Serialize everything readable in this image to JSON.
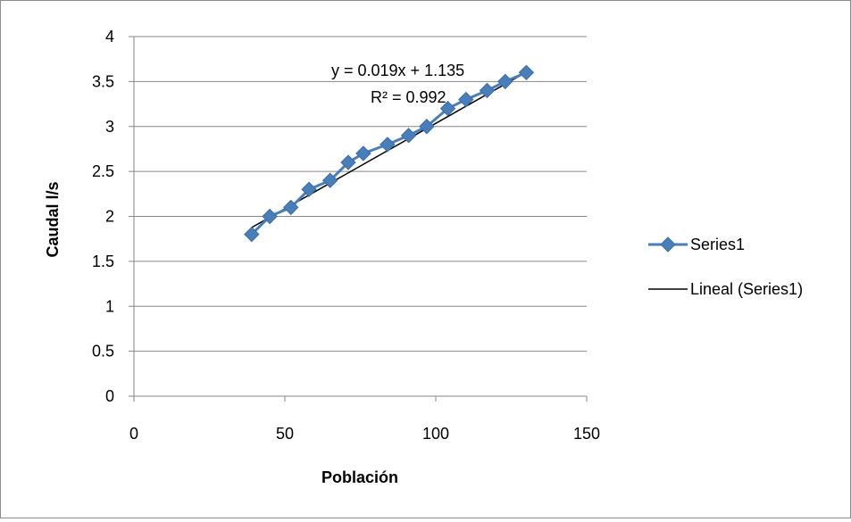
{
  "chart_data": {
    "type": "scatter",
    "xlabel": "Población",
    "ylabel": "Caudal l/s",
    "xlim": [
      0,
      150
    ],
    "ylim": [
      0,
      4
    ],
    "x_ticks": [
      0,
      50,
      100,
      150
    ],
    "y_ticks": [
      0,
      0.5,
      1,
      1.5,
      2,
      2.5,
      3,
      3.5,
      4
    ],
    "grid": "horizontal",
    "legend_position": "right",
    "series": [
      {
        "name": "Series1",
        "color": "#4a7ebb",
        "marker": "diamond",
        "x": [
          39,
          45,
          52,
          58,
          65,
          71,
          76,
          84,
          91,
          97,
          104,
          110,
          117,
          123,
          130
        ],
        "y": [
          1.8,
          2.0,
          2.1,
          2.3,
          2.4,
          2.6,
          2.7,
          2.8,
          2.9,
          3.0,
          3.2,
          3.3,
          3.4,
          3.5,
          3.6
        ]
      }
    ],
    "trendline": {
      "name": "Lineal (Series1)",
      "color": "#000000",
      "slope": 0.019,
      "intercept": 1.135,
      "x_range": [
        39,
        130
      ],
      "equation": "y = 0.019x + 1.135",
      "r_squared": "R² = 0.992"
    }
  }
}
